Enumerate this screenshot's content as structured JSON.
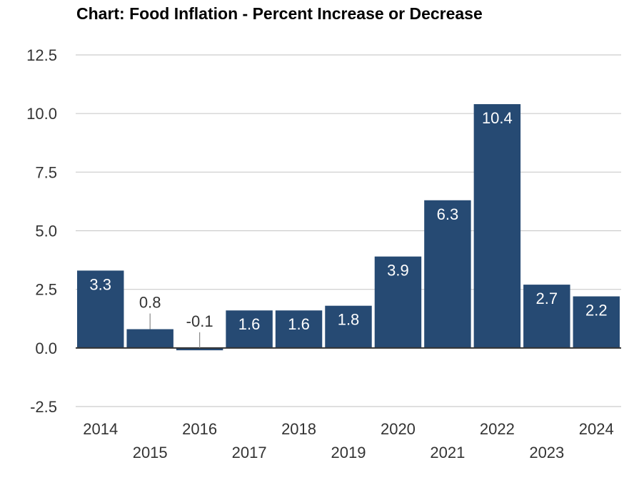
{
  "chart_data": {
    "type": "bar",
    "title": "Chart: Food Inflation - Percent Increase or Decrease",
    "xlabel": "",
    "ylabel": "",
    "categories": [
      "2014",
      "2015",
      "2016",
      "2017",
      "2018",
      "2019",
      "2020",
      "2021",
      "2022",
      "2023",
      "2024"
    ],
    "values": [
      3.3,
      0.8,
      -0.1,
      1.6,
      1.6,
      1.8,
      3.9,
      6.3,
      10.4,
      2.7,
      2.2
    ],
    "value_labels": [
      "3.3",
      "0.8",
      "-0.1",
      "1.6",
      "1.6",
      "1.8",
      "3.9",
      "6.3",
      "10.4",
      "2.7",
      "2.2"
    ],
    "ylim": [
      -2.5,
      12.5
    ],
    "yticks": [
      "-2.5",
      "0.0",
      "2.5",
      "5.0",
      "7.5",
      "10.0",
      "12.5"
    ],
    "grid": true,
    "legend": "none",
    "colors": {
      "bar": "#264a73",
      "grid": "#cccccc",
      "axis": "#333333",
      "label_inside": "#ffffff",
      "label_outside": "#333333",
      "tick_text": "#333333"
    }
  }
}
